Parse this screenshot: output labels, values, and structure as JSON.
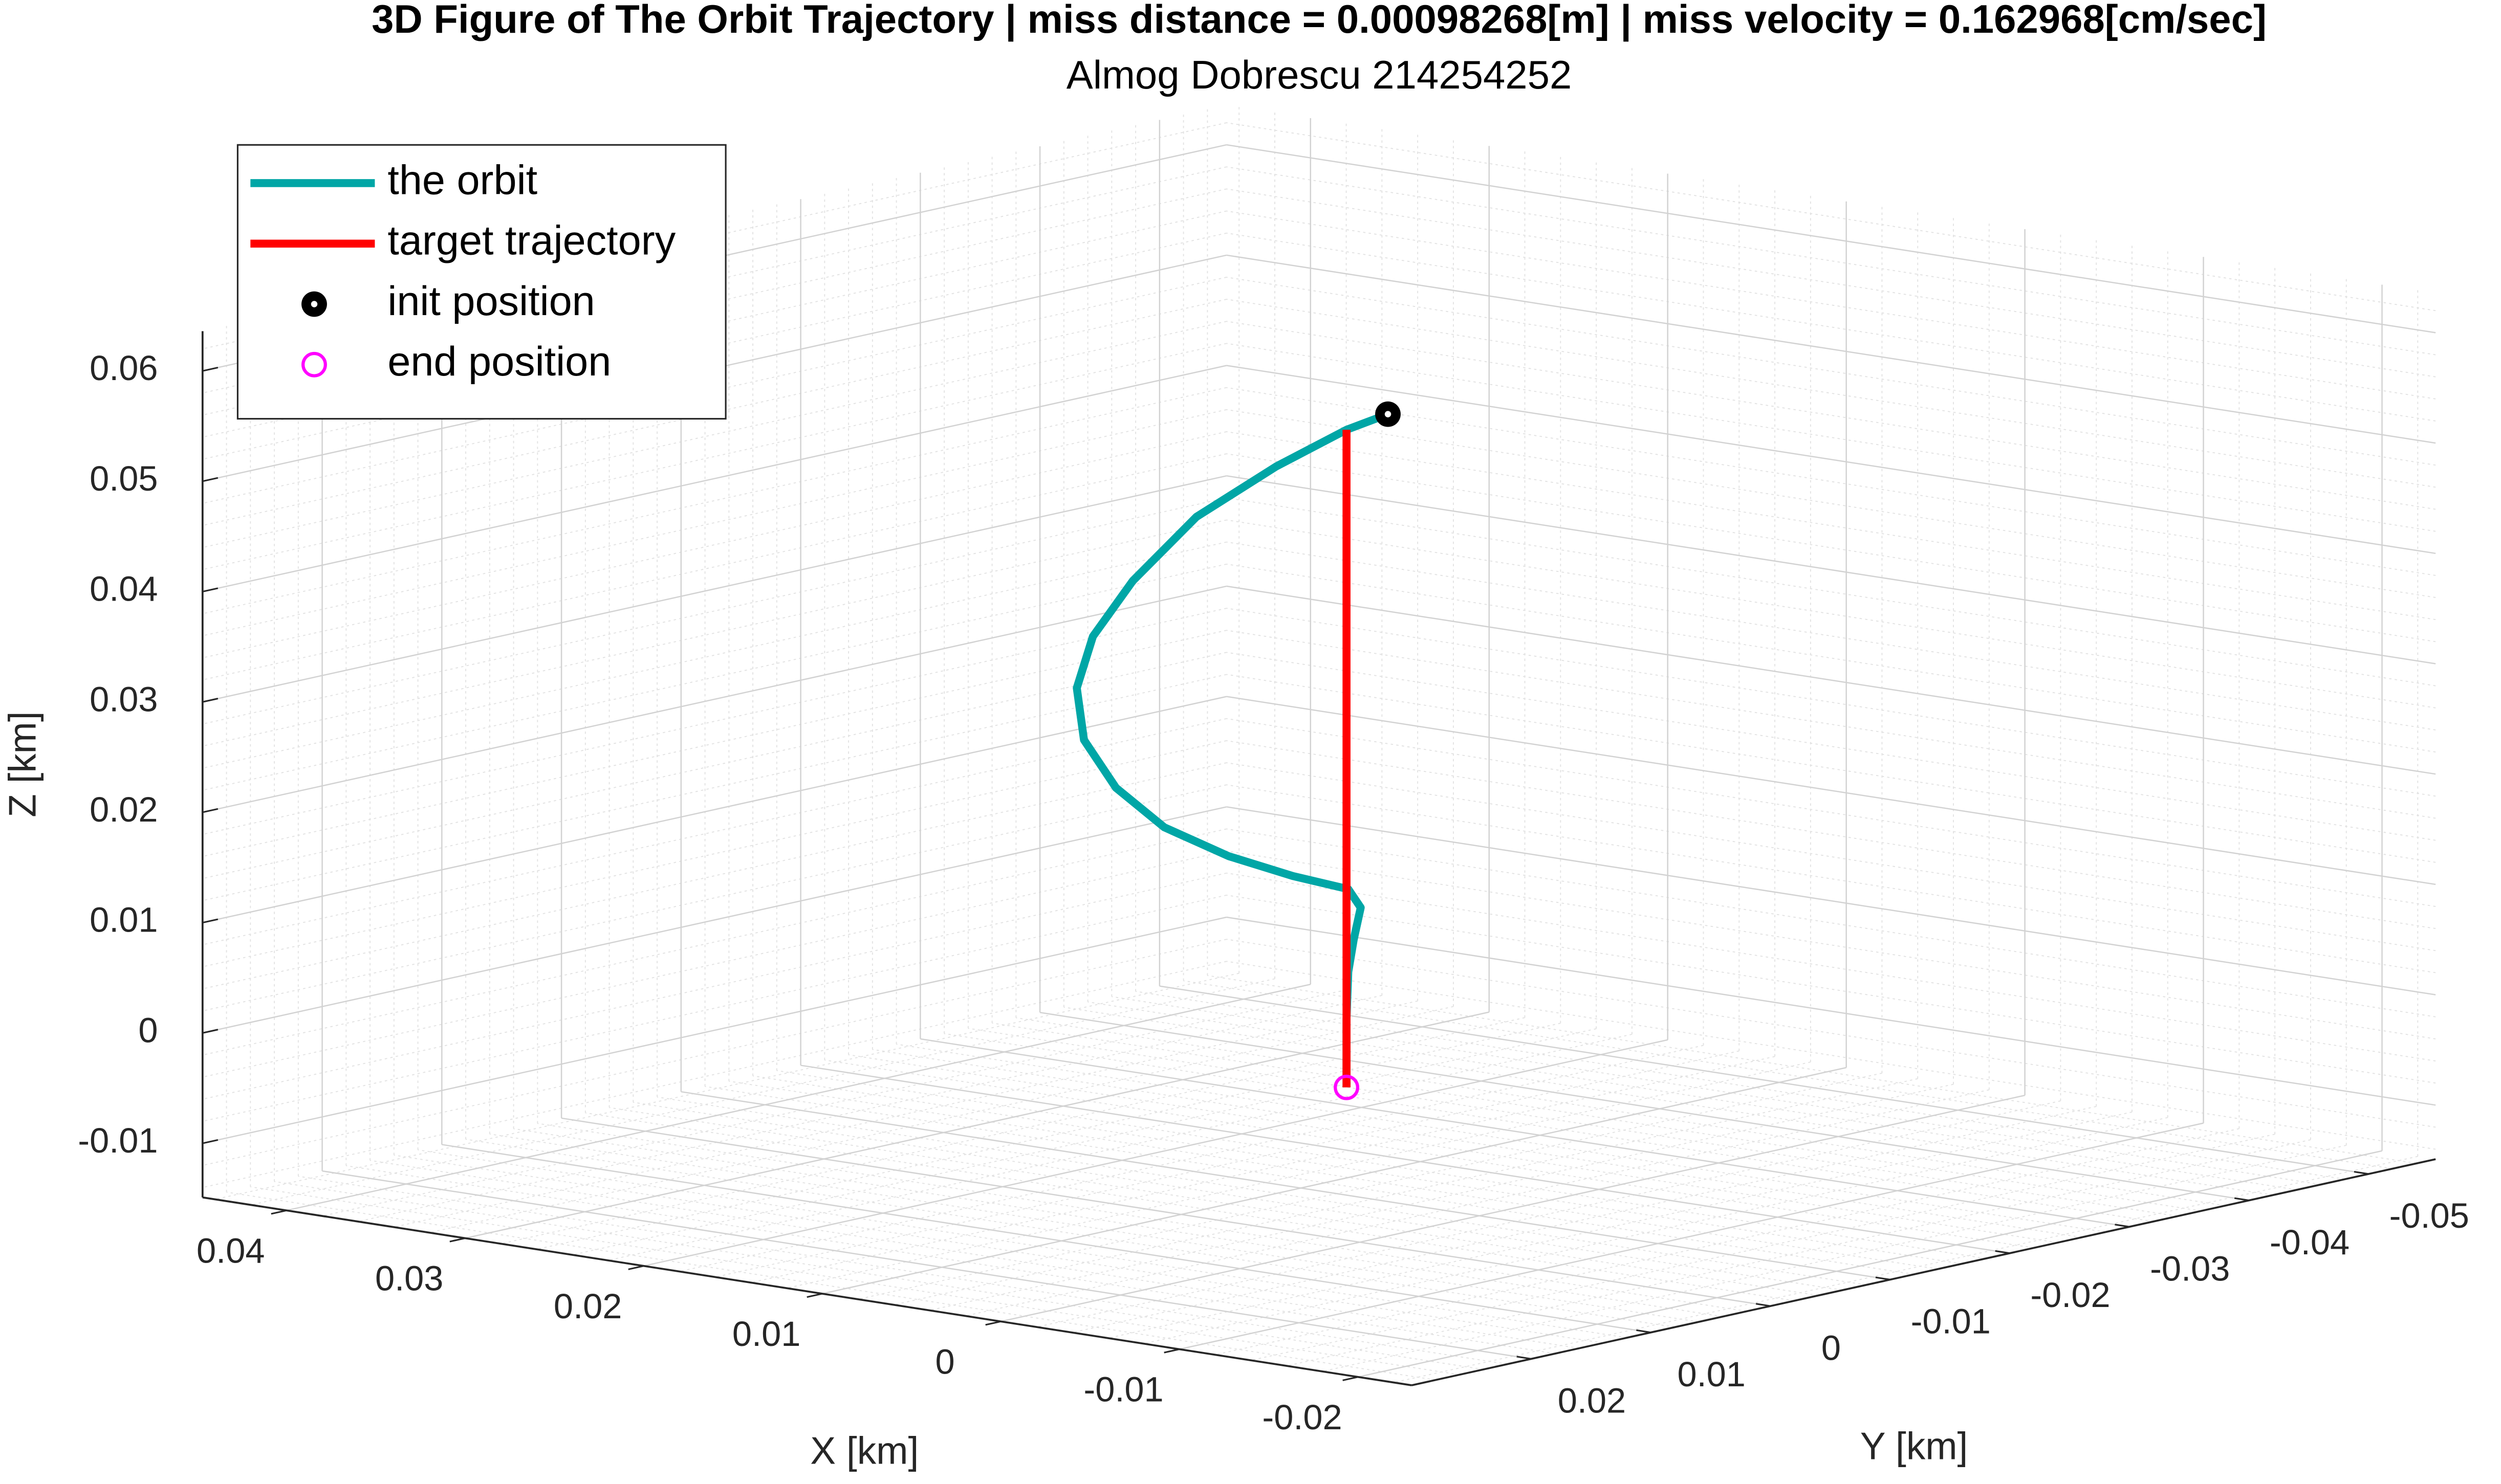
{
  "chart_data": {
    "type": "line3d",
    "title": "3D Figure of The Orbit Trajectory | miss distance = 0.00098268[m] | miss velocity = 0.162968[cm/sec]",
    "subtitle": "Almog Dobrescu 214254252",
    "x_label": "X [km]",
    "y_label": "Y [km]",
    "z_label": "Z [km]",
    "xlim": [
      -0.023,
      0.0447
    ],
    "ylim": [
      -0.0556,
      0.03
    ],
    "zlim": [
      -0.0149,
      0.0636
    ],
    "xticks": [
      -0.02,
      -0.01,
      0,
      0.01,
      0.02,
      0.03,
      0.04
    ],
    "yticks": [
      -0.05,
      -0.04,
      -0.03,
      -0.02,
      -0.01,
      0,
      0.01,
      0.02
    ],
    "zticks": [
      -0.01,
      0,
      0.01,
      0.02,
      0.03,
      0.04,
      0.05,
      0.06
    ],
    "grid": true,
    "minor_grid": true,
    "legend_position": "upper-left",
    "series": [
      {
        "name": "the orbit",
        "color": "#00a6a6",
        "style": "line",
        "x": [
          -0.00332,
          -0.001,
          0.00293,
          0.0074,
          0.01097,
          0.0132,
          0.0141,
          0.0137,
          0.0119,
          0.0092,
          0.0056,
          0.002,
          -0.0011,
          -0.0018,
          -0.0014,
          -0.0011,
          -0.001,
          -0.001
        ],
        "y": [
          0.0026,
          0.0026,
          0.0026,
          0.0026,
          0.0026,
          0.0026,
          0.0026,
          0.0026,
          0.0026,
          0.0026,
          0.0026,
          0.0026,
          0.0026,
          0.0026,
          0.0026,
          0.0026,
          0.0026,
          0.0026
        ],
        "z": [
          0.0616,
          0.0596,
          0.0553,
          0.0496,
          0.0429,
          0.0373,
          0.0324,
          0.0278,
          0.0239,
          0.021,
          0.0193,
          0.0184,
          0.018,
          0.0165,
          0.0135,
          0.0105,
          0.0062,
          0
        ]
      },
      {
        "name": "target trajectory",
        "color": "#ff0000",
        "style": "line",
        "x": [
          -0.001,
          -0.001
        ],
        "y": [
          0.0026,
          0.0026
        ],
        "z": [
          0,
          0.0596
        ]
      },
      {
        "name": "init position",
        "color": "#000000",
        "style": "marker-filled",
        "x": [
          -0.00332
        ],
        "y": [
          0.0026
        ],
        "z": [
          0.0616
        ]
      },
      {
        "name": "end position",
        "color": "#ff00ff",
        "style": "marker-open",
        "x": [
          -0.001
        ],
        "y": [
          0.0026
        ],
        "z": [
          0
        ]
      }
    ]
  }
}
